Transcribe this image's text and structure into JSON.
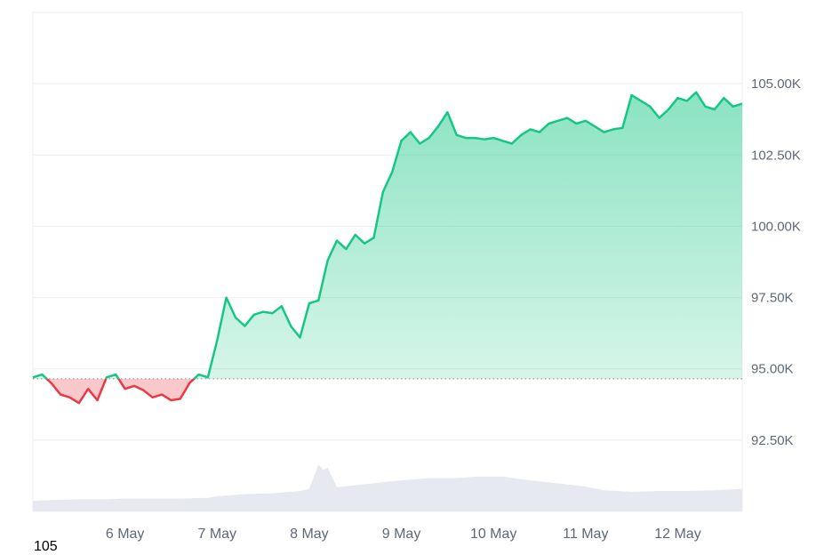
{
  "chart_data": {
    "type": "area",
    "title": "",
    "xlabel": "",
    "ylabel": "",
    "x_ticks": [
      "6 May",
      "7 May",
      "8 May",
      "9 May",
      "10 May",
      "11 May",
      "12 May"
    ],
    "y_ticks": [
      "92.50K",
      "95.00K",
      "97.50K",
      "100.00K",
      "102.50K",
      "105.00K"
    ],
    "ylim": [
      90000,
      107500
    ],
    "baseline": 94650,
    "grid": true,
    "colors": {
      "up_line": "#16c784",
      "down_line": "#ea3943",
      "up_fill": "#16c784",
      "down_fill": "#ea3943",
      "volume": "#e6e9ef",
      "grid": "#eceef2",
      "baseline": "#888888"
    },
    "series": [
      {
        "x": [
          5.0,
          5.1,
          5.2,
          5.3,
          5.4,
          5.5,
          5.6,
          5.7,
          5.8,
          5.9,
          6.0,
          6.1,
          6.2,
          6.3,
          6.4,
          6.5,
          6.6,
          6.7,
          6.8,
          6.9,
          7.0,
          7.1,
          7.2,
          7.3,
          7.4,
          7.5,
          7.6,
          7.7,
          7.8,
          7.9,
          8.0,
          8.1,
          8.2,
          8.3,
          8.4,
          8.5,
          8.6,
          8.7,
          8.8,
          8.9,
          9.0,
          9.1,
          9.2,
          9.3,
          9.4,
          9.5,
          9.6,
          9.7,
          9.8,
          9.9,
          10.0,
          10.1,
          10.2,
          10.3,
          10.4,
          10.5,
          10.6,
          10.7,
          10.8,
          10.9,
          11.0,
          11.1,
          11.2,
          11.3,
          11.4,
          11.5,
          11.6,
          11.7,
          11.8,
          11.9,
          12.0,
          12.1,
          12.2,
          12.3,
          12.4,
          12.5,
          12.6,
          12.7
        ],
        "values": [
          94700,
          94800,
          94500,
          94100,
          94000,
          93800,
          94300,
          93900,
          94700,
          94800,
          94300,
          94400,
          94250,
          94000,
          94100,
          93900,
          93950,
          94500,
          94800,
          94700,
          96000,
          97500,
          96800,
          96500,
          96900,
          97000,
          96950,
          97200,
          96500,
          96100,
          97300,
          97400,
          98800,
          99500,
          99200,
          99700,
          99400,
          99600,
          101200,
          101900,
          103000,
          103300,
          102900,
          103100,
          103500,
          104000,
          103200,
          103100,
          103100,
          103050,
          103100,
          103000,
          102900,
          103200,
          103400,
          103300,
          103600,
          103700,
          103800,
          103600,
          103700,
          103500,
          103300,
          103400,
          103450,
          104600,
          104400,
          104200,
          103800,
          104100,
          104500,
          104400,
          104700,
          104200,
          104100,
          104500,
          104200,
          104300
        ]
      }
    ],
    "volume": {
      "x": [
        5.0,
        5.2,
        5.5,
        5.8,
        6.0,
        6.3,
        6.6,
        6.9,
        7.0,
        7.3,
        7.6,
        7.9,
        8.0,
        8.1,
        8.15,
        8.2,
        8.3,
        8.6,
        8.9,
        9.1,
        9.3,
        9.6,
        9.8,
        10.1,
        10.4,
        10.7,
        11.0,
        11.2,
        11.5,
        11.8,
        12.1,
        12.4,
        12.7
      ],
      "values": [
        0.14,
        0.15,
        0.16,
        0.16,
        0.17,
        0.17,
        0.17,
        0.18,
        0.2,
        0.23,
        0.24,
        0.27,
        0.3,
        0.62,
        0.55,
        0.58,
        0.32,
        0.36,
        0.4,
        0.42,
        0.44,
        0.44,
        0.46,
        0.46,
        0.41,
        0.37,
        0.33,
        0.28,
        0.26,
        0.27,
        0.27,
        0.28,
        0.3
      ]
    }
  },
  "footer": {
    "corner_label": "105"
  }
}
